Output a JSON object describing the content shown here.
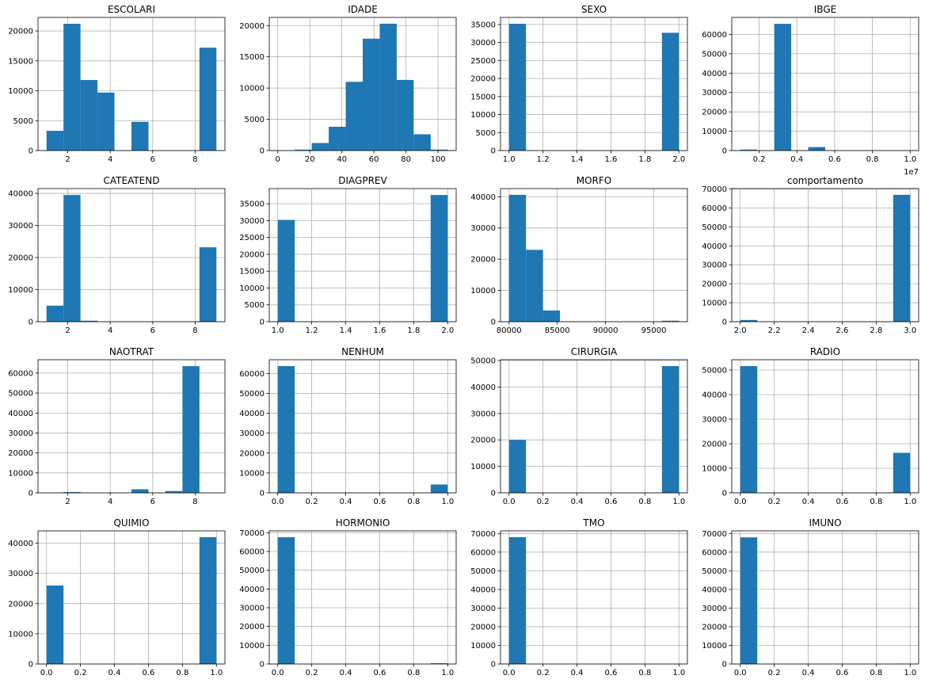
{
  "chart_data": [
    {
      "type": "histogram",
      "title": "ESCOLARI",
      "bins": [
        1,
        1.8,
        2.6,
        3.4,
        4.2,
        5,
        5.8,
        6.6,
        7.4,
        8.2,
        9
      ],
      "counts": [
        3300,
        21200,
        11800,
        9700,
        0,
        4800,
        0,
        0,
        0,
        17200
      ],
      "color": "#1f77b4",
      "xlim": [
        0.6,
        9.4
      ],
      "ylim": [
        0,
        22260
      ],
      "xticks": [
        2,
        4,
        6,
        8
      ],
      "yticks": [
        0,
        5000,
        10000,
        15000,
        20000
      ],
      "grid": true
    },
    {
      "type": "histogram",
      "title": "IDADE",
      "bins": [
        0,
        10.6,
        21.2,
        31.8,
        42.4,
        53,
        63.6,
        74.2,
        84.8,
        95.4,
        106
      ],
      "counts": [
        10,
        150,
        1200,
        3800,
        11000,
        17900,
        20300,
        11300,
        2600,
        150
      ],
      "color": "#1f77b4",
      "xlim": [
        -5.3,
        111.3
      ],
      "ylim": [
        0,
        21300
      ],
      "xticks": [
        0,
        20,
        40,
        60,
        80,
        100
      ],
      "yticks": [
        0,
        5000,
        10000,
        15000,
        20000
      ],
      "grid": true
    },
    {
      "type": "histogram",
      "title": "SEXO",
      "bins": [
        1,
        1.1,
        1.2,
        1.3,
        1.4,
        1.5,
        1.6,
        1.7,
        1.8,
        1.9,
        2
      ],
      "counts": [
        35200,
        0,
        0,
        0,
        0,
        0,
        0,
        0,
        0,
        32700
      ],
      "color": "#1f77b4",
      "xlim": [
        0.95,
        2.05
      ],
      "ylim": [
        0,
        36960
      ],
      "xticks": [
        {
          "value": 1,
          "label": "1.0"
        },
        1.2,
        1.4,
        1.6,
        1.8,
        {
          "value": 2,
          "label": "2.0"
        }
      ],
      "yticks": [
        0,
        5000,
        10000,
        15000,
        20000,
        25000,
        30000,
        35000
      ],
      "grid": true
    },
    {
      "type": "histogram",
      "title": "IBGE",
      "bins": [
        1000000,
        1900000,
        2800000,
        3700000,
        4600000,
        5500000,
        6400000,
        7300000,
        8200000,
        9100000,
        10000000
      ],
      "counts": [
        500,
        0,
        65500,
        0,
        1800,
        0,
        0,
        0,
        0,
        10
      ],
      "color": "#1f77b4",
      "xlim": [
        550000,
        10450000
      ],
      "ylim": [
        0,
        68800
      ],
      "xticks": [
        {
          "value": 2000000,
          "label": "0.2"
        },
        {
          "value": 4000000,
          "label": "0.4"
        },
        {
          "value": 6000000,
          "label": "0.6"
        },
        {
          "value": 8000000,
          "label": "0.8"
        },
        {
          "value": 10000000,
          "label": "1.0"
        }
      ],
      "x_offset_label": "1e7",
      "yticks": [
        0,
        10000,
        20000,
        30000,
        40000,
        50000,
        60000
      ],
      "grid": true
    },
    {
      "type": "histogram",
      "title": "CATEATEND",
      "bins": [
        1,
        1.8,
        2.6,
        3.4,
        4.2,
        5,
        5.8,
        6.6,
        7.4,
        8.2,
        9
      ],
      "counts": [
        5000,
        39500,
        300,
        0,
        0,
        0,
        0,
        0,
        0,
        23200
      ],
      "color": "#1f77b4",
      "xlim": [
        0.6,
        9.4
      ],
      "ylim": [
        0,
        41500
      ],
      "xticks": [
        2,
        4,
        6,
        8
      ],
      "yticks": [
        0,
        10000,
        20000,
        30000,
        40000
      ],
      "grid": true
    },
    {
      "type": "histogram",
      "title": "DIAGPREV",
      "bins": [
        1,
        1.1,
        1.2,
        1.3,
        1.4,
        1.5,
        1.6,
        1.7,
        1.8,
        1.9,
        2
      ],
      "counts": [
        30200,
        0,
        0,
        0,
        0,
        0,
        0,
        0,
        0,
        37600
      ],
      "color": "#1f77b4",
      "xlim": [
        0.95,
        2.05
      ],
      "ylim": [
        0,
        39500
      ],
      "xticks": [
        {
          "value": 1,
          "label": "1.0"
        },
        1.2,
        1.4,
        1.6,
        1.8,
        {
          "value": 2,
          "label": "2.0"
        }
      ],
      "yticks": [
        0,
        5000,
        10000,
        15000,
        20000,
        25000,
        30000,
        35000
      ],
      "grid": true
    },
    {
      "type": "histogram",
      "title": "MORFO",
      "bins": [
        80000,
        81760,
        83520,
        85280,
        87040,
        88800,
        90560,
        92320,
        94080,
        95840,
        97600
      ],
      "counts": [
        40600,
        23000,
        3600,
        0,
        0,
        0,
        0,
        0,
        0,
        300
      ],
      "color": "#1f77b4",
      "xlim": [
        79120,
        98480
      ],
      "ylim": [
        0,
        42600
      ],
      "xticks": [
        80000,
        85000,
        90000,
        95000
      ],
      "yticks": [
        0,
        10000,
        20000,
        30000,
        40000
      ],
      "grid": true
    },
    {
      "type": "histogram",
      "title": "comportamento",
      "bins": [
        2,
        2.1,
        2.2,
        2.3,
        2.4,
        2.5,
        2.6,
        2.7,
        2.8,
        2.9,
        3
      ],
      "counts": [
        900,
        0,
        0,
        0,
        0,
        0,
        0,
        0,
        0,
        66900
      ],
      "color": "#1f77b4",
      "xlim": [
        1.95,
        3.05
      ],
      "ylim": [
        0,
        70200
      ],
      "xticks": [
        {
          "value": 2,
          "label": "2.0"
        },
        2.2,
        2.4,
        2.6,
        2.8,
        {
          "value": 3,
          "label": "3.0"
        }
      ],
      "yticks": [
        0,
        10000,
        20000,
        30000,
        40000,
        50000,
        60000,
        70000
      ],
      "grid": true
    },
    {
      "type": "histogram",
      "title": "NAOTRAT",
      "bins": [
        1,
        1.8,
        2.6,
        3.4,
        4.2,
        5,
        5.8,
        6.6,
        7.4,
        8.2,
        9
      ],
      "counts": [
        50,
        400,
        0,
        0,
        0,
        1800,
        0,
        900,
        63500,
        20
      ],
      "color": "#1f77b4",
      "xlim": [
        0.6,
        9.4
      ],
      "ylim": [
        0,
        66700
      ],
      "xticks": [
        2,
        4,
        6,
        8
      ],
      "yticks": [
        0,
        10000,
        20000,
        30000,
        40000,
        50000,
        60000
      ],
      "grid": true
    },
    {
      "type": "histogram",
      "title": "NENHUM",
      "bins": [
        0,
        0.1,
        0.2,
        0.3,
        0.4,
        0.5,
        0.6,
        0.7,
        0.8,
        0.9,
        1
      ],
      "counts": [
        63700,
        0,
        0,
        0,
        0,
        0,
        0,
        0,
        0,
        4200
      ],
      "color": "#1f77b4",
      "xlim": [
        -0.05,
        1.05
      ],
      "ylim": [
        0,
        66900
      ],
      "xticks": [
        {
          "value": 0,
          "label": "0.0"
        },
        0.2,
        0.4,
        0.6,
        0.8,
        {
          "value": 1,
          "label": "1.0"
        }
      ],
      "yticks": [
        0,
        10000,
        20000,
        30000,
        40000,
        50000,
        60000
      ],
      "grid": true
    },
    {
      "type": "histogram",
      "title": "CIRURGIA",
      "bins": [
        0,
        0.1,
        0.2,
        0.3,
        0.4,
        0.5,
        0.6,
        0.7,
        0.8,
        0.9,
        1
      ],
      "counts": [
        20000,
        0,
        0,
        0,
        0,
        0,
        0,
        0,
        0,
        47900
      ],
      "color": "#1f77b4",
      "xlim": [
        -0.05,
        1.05
      ],
      "ylim": [
        0,
        50300
      ],
      "xticks": [
        {
          "value": 0,
          "label": "0.0"
        },
        0.2,
        0.4,
        0.6,
        0.8,
        {
          "value": 1,
          "label": "1.0"
        }
      ],
      "yticks": [
        0,
        10000,
        20000,
        30000,
        40000,
        50000
      ],
      "grid": true
    },
    {
      "type": "histogram",
      "title": "RADIO",
      "bins": [
        0,
        0.1,
        0.2,
        0.3,
        0.4,
        0.5,
        0.6,
        0.7,
        0.8,
        0.9,
        1
      ],
      "counts": [
        51600,
        0,
        0,
        0,
        0,
        0,
        0,
        0,
        0,
        16300
      ],
      "color": "#1f77b4",
      "xlim": [
        -0.05,
        1.05
      ],
      "ylim": [
        0,
        54200
      ],
      "xticks": [
        {
          "value": 0,
          "label": "0.0"
        },
        0.2,
        0.4,
        0.6,
        0.8,
        {
          "value": 1,
          "label": "1.0"
        }
      ],
      "yticks": [
        0,
        10000,
        20000,
        30000,
        40000,
        50000
      ],
      "grid": true
    },
    {
      "type": "histogram",
      "title": "QUIMIO",
      "bins": [
        0,
        0.1,
        0.2,
        0.3,
        0.4,
        0.5,
        0.6,
        0.7,
        0.8,
        0.9,
        1
      ],
      "counts": [
        26000,
        0,
        0,
        0,
        0,
        0,
        0,
        0,
        0,
        42000
      ],
      "color": "#1f77b4",
      "xlim": [
        -0.05,
        1.05
      ],
      "ylim": [
        0,
        44100
      ],
      "xticks": [
        {
          "value": 0,
          "label": "0.0"
        },
        0.2,
        0.4,
        0.6,
        0.8,
        {
          "value": 1,
          "label": "1.0"
        }
      ],
      "yticks": [
        0,
        10000,
        20000,
        30000,
        40000
      ],
      "grid": true
    },
    {
      "type": "histogram",
      "title": "HORMONIO",
      "bins": [
        0,
        0.1,
        0.2,
        0.3,
        0.4,
        0.5,
        0.6,
        0.7,
        0.8,
        0.9,
        1
      ],
      "counts": [
        67600,
        0,
        0,
        0,
        0,
        0,
        0,
        0,
        0,
        400
      ],
      "color": "#1f77b4",
      "xlim": [
        -0.05,
        1.05
      ],
      "ylim": [
        0,
        71000
      ],
      "xticks": [
        {
          "value": 0,
          "label": "0.0"
        },
        0.2,
        0.4,
        0.6,
        0.8,
        {
          "value": 1,
          "label": "1.0"
        }
      ],
      "yticks": [
        0,
        10000,
        20000,
        30000,
        40000,
        50000,
        60000,
        70000
      ],
      "grid": true
    },
    {
      "type": "histogram",
      "title": "TMO",
      "bins": [
        0,
        0.1,
        0.2,
        0.3,
        0.4,
        0.5,
        0.6,
        0.7,
        0.8,
        0.9,
        1
      ],
      "counts": [
        68000,
        0,
        0,
        0,
        0,
        0,
        0,
        0,
        0,
        10
      ],
      "color": "#1f77b4",
      "xlim": [
        -0.05,
        1.05
      ],
      "ylim": [
        0,
        71400
      ],
      "xticks": [
        {
          "value": 0,
          "label": "0.0"
        },
        0.2,
        0.4,
        0.6,
        0.8,
        {
          "value": 1,
          "label": "1.0"
        }
      ],
      "yticks": [
        0,
        10000,
        20000,
        30000,
        40000,
        50000,
        60000,
        70000
      ],
      "grid": true
    },
    {
      "type": "histogram",
      "title": "IMUNO",
      "bins": [
        0,
        0.1,
        0.2,
        0.3,
        0.4,
        0.5,
        0.6,
        0.7,
        0.8,
        0.9,
        1
      ],
      "counts": [
        67900,
        0,
        0,
        0,
        0,
        0,
        0,
        0,
        0,
        100
      ],
      "color": "#1f77b4",
      "xlim": [
        -0.05,
        1.05
      ],
      "ylim": [
        0,
        71400
      ],
      "xticks": [
        {
          "value": 0,
          "label": "0.0"
        },
        0.2,
        0.4,
        0.6,
        0.8,
        {
          "value": 1,
          "label": "1.0"
        }
      ],
      "yticks": [
        0,
        10000,
        20000,
        30000,
        40000,
        50000,
        60000,
        70000
      ],
      "grid": true
    }
  ]
}
